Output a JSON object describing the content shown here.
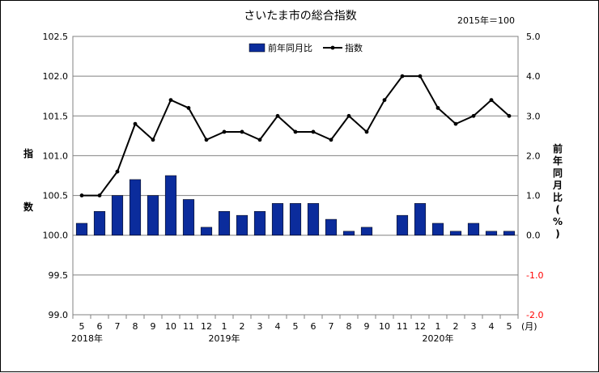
{
  "chart_data": {
    "type": "bar+line",
    "title": "さいたま市の総合指数",
    "base_note": "2015年＝100",
    "y_left_label": [
      "指",
      "数"
    ],
    "y_right_label": [
      "前",
      "年",
      "同",
      "月",
      "比",
      "(",
      "%",
      ")"
    ],
    "y_left_ticks": [
      "102.5",
      "102.0",
      "101.5",
      "101.0",
      "100.5",
      "100.0",
      "99.5",
      "99.0"
    ],
    "y_right_ticks": [
      "5.0",
      "4.0",
      "3.0",
      "2.0",
      "1.0",
      "0.0",
      "-1.0",
      "-2.0"
    ],
    "ylim_left": [
      99.0,
      102.5
    ],
    "ylim_right": [
      -2.0,
      5.0
    ],
    "categories": [
      "5",
      "6",
      "7",
      "8",
      "9",
      "10",
      "11",
      "12",
      "1",
      "2",
      "3",
      "4",
      "5",
      "6",
      "7",
      "8",
      "9",
      "10",
      "11",
      "12",
      "1",
      "2",
      "3",
      "4",
      "5"
    ],
    "x_unit": "(月)",
    "year_labels": [
      {
        "label": "2018年",
        "at_index": 0
      },
      {
        "label": "2019年",
        "at_index": 8
      },
      {
        "label": "2020年",
        "at_index": 20
      }
    ],
    "series": [
      {
        "name": "前年同月比",
        "kind": "bar",
        "axis": "right",
        "color": "#0b2c9c",
        "values": [
          0.3,
          0.6,
          1.0,
          1.4,
          1.0,
          1.5,
          0.9,
          0.2,
          0.6,
          0.5,
          0.6,
          0.8,
          0.8,
          0.8,
          0.4,
          0.1,
          0.2,
          0.0,
          0.5,
          0.8,
          0.3,
          0.1,
          0.3,
          0.1,
          0.1
        ]
      },
      {
        "name": "指数",
        "kind": "line",
        "axis": "left",
        "color": "#000000",
        "values": [
          100.5,
          100.5,
          100.8,
          101.4,
          101.2,
          101.7,
          101.6,
          101.2,
          101.3,
          101.3,
          101.2,
          101.5,
          101.3,
          101.3,
          101.2,
          101.5,
          101.3,
          101.7,
          102.0,
          102.0,
          101.6,
          101.4,
          101.5,
          101.7,
          101.5
        ]
      }
    ],
    "legend_position": "top-center",
    "grid": true
  }
}
